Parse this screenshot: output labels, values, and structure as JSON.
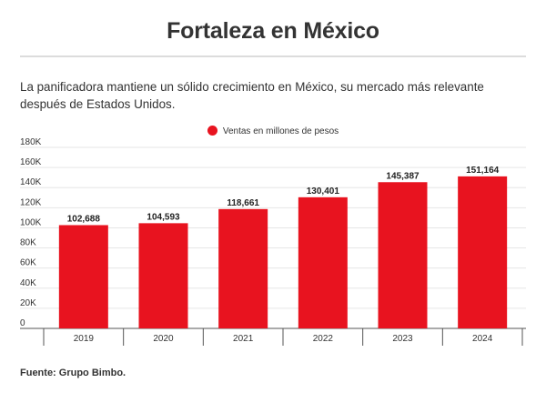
{
  "header": {
    "title": "Fortaleza en México",
    "subtitle": "La panificadora mantiene un sólido crecimiento en México, su mercado más relevante después de Estados Unidos."
  },
  "footer": {
    "source": "Fuente: Grupo Bimbo."
  },
  "colors": {
    "bar": "#e8131f",
    "grid": "#e6e6e6",
    "axis": "#555555"
  },
  "chart_data": {
    "type": "bar",
    "categories": [
      "2019",
      "2020",
      "2021",
      "2022",
      "2023",
      "2024"
    ],
    "series": [
      {
        "name": "Ventas en millones de pesos",
        "values": [
          102688,
          104593,
          118661,
          130401,
          145387,
          151164
        ],
        "labels": [
          "102,688",
          "104,593",
          "118,661",
          "130,401",
          "145,387",
          "151,164"
        ]
      }
    ],
    "ylim": [
      0,
      180000
    ],
    "yticks": [
      0,
      20000,
      40000,
      60000,
      80000,
      100000,
      120000,
      140000,
      160000,
      180000
    ],
    "ytick_labels": [
      "0",
      "20K",
      "40K",
      "60K",
      "80K",
      "100K",
      "120K",
      "140K",
      "160K",
      "180K"
    ],
    "grid": true,
    "legend": "top-center"
  }
}
